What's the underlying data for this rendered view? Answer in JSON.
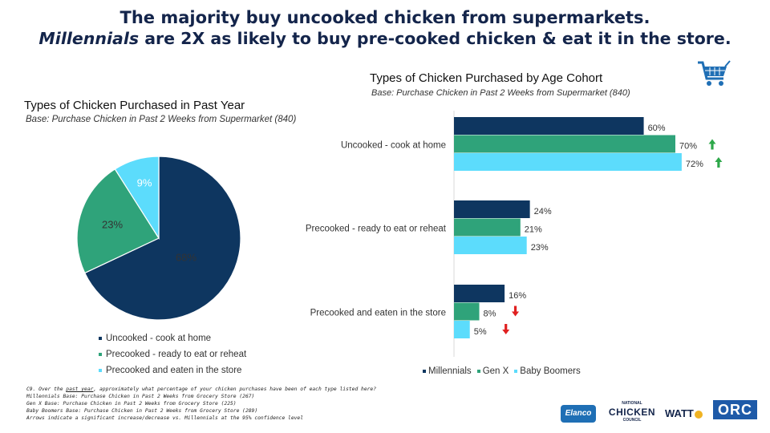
{
  "title": {
    "line1": "The majority buy uncooked chicken from supermarkets.",
    "line2_em": "Millennials",
    "line2_rest": " are 2X as likely to buy pre-cooked chicken & eat it in the store."
  },
  "colors": {
    "millennials": "#0e3660",
    "genx": "#2fa37a",
    "boomers": "#5cdcfc",
    "arrow_up": "#2ea84a",
    "arrow_down": "#e02020",
    "title": "#14254b",
    "cart": "#1f6fb5"
  },
  "icons": {
    "cart": "shopping-cart-icon"
  },
  "chart_data": [
    {
      "type": "pie",
      "title": "Types of Chicken Purchased in Past Year",
      "subtitle": "Base: Purchase Chicken in Past 2 Weeks from Supermarket (840)",
      "categories": [
        "Uncooked - cook at home",
        "Precooked - ready to eat or reheat",
        "Precooked and eaten in the store"
      ],
      "values": [
        68,
        23,
        9
      ],
      "labels": [
        "68%",
        "23%",
        "9%"
      ],
      "legend_position": "bottom-left"
    },
    {
      "type": "bar",
      "orientation": "horizontal",
      "title": "Types of Chicken Purchased by Age Cohort",
      "subtitle": "Base: Purchase Chicken in Past 2 Weeks from Supermarket (840)",
      "categories": [
        "Uncooked - cook at home",
        "Precooked - ready to eat or reheat",
        "Precooked and eaten in the store"
      ],
      "series": [
        {
          "name": "Millennials",
          "values": [
            60,
            24,
            16
          ],
          "labels": [
            "60%",
            "24%",
            "16%"
          ]
        },
        {
          "name": "Gen X",
          "values": [
            70,
            21,
            8
          ],
          "labels": [
            "70%",
            "21%",
            "8%"
          ]
        },
        {
          "name": "Baby Boomers",
          "values": [
            72,
            23,
            5
          ],
          "labels": [
            "72%",
            "23%",
            "5%"
          ]
        }
      ],
      "significance": [
        {
          "category": "Uncooked - cook at home",
          "series": "Gen X",
          "direction": "up"
        },
        {
          "category": "Uncooked - cook at home",
          "series": "Baby Boomers",
          "direction": "up"
        },
        {
          "category": "Precooked and eaten in the store",
          "series": "Gen X",
          "direction": "down"
        },
        {
          "category": "Precooked and eaten in the store",
          "series": "Baby Boomers",
          "direction": "down"
        }
      ],
      "xlim": [
        0,
        100
      ],
      "legend_position": "bottom"
    }
  ],
  "footnote": {
    "q_prefix": "C9. Over the ",
    "q_underlined": "past year",
    "q_suffix": ", approximately what percentage of your chicken purchases have been of each type listed here?",
    "base_millennials": "Millennials Base: Purchase Chicken in Past 2 Weeks from Grocery Store (267)",
    "base_genx": "Gen X Base: Purchase Chicken in Past 2 Weeks from Grocery Store (225)",
    "base_boomers": "Baby Boomers Base: Purchase Chicken in Past 2 Weeks from Grocery Store (289)",
    "arrows_note": "Arrows indicate a significant increase/decrease vs. Millennials at the 95% confidence level"
  },
  "logos": {
    "elanco": "Elanco",
    "ncc_top": "NATIONAL",
    "ncc_main": "CHICKEN",
    "ncc_bottom": "COUNCIL",
    "watt": "WATT",
    "orc": "ORC"
  }
}
